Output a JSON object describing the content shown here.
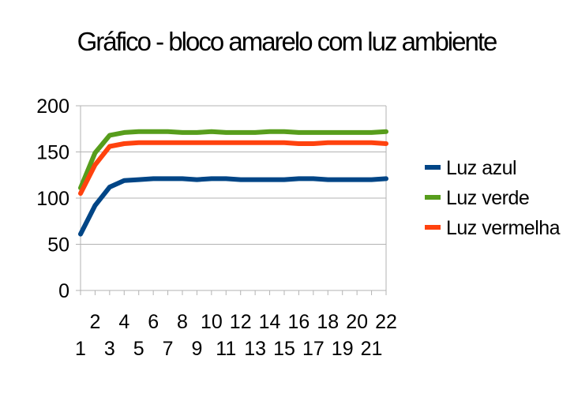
{
  "chart_data": {
    "type": "line",
    "title": "Gráfico - bloco amarelo com luz ambiente",
    "xlabel": "",
    "ylabel": "",
    "x": [
      1,
      2,
      3,
      4,
      5,
      6,
      7,
      8,
      9,
      10,
      11,
      12,
      13,
      14,
      15,
      16,
      17,
      18,
      19,
      20,
      21,
      22
    ],
    "x_tick_labels_row1": [
      "2",
      "4",
      "6",
      "8",
      "10",
      "12",
      "14",
      "16",
      "18",
      "20",
      "22"
    ],
    "x_tick_labels_row2": [
      "1",
      "3",
      "5",
      "7",
      "9",
      "11",
      "13",
      "15",
      "17",
      "19",
      "21"
    ],
    "y_tick_labels": [
      "0",
      "50",
      "100",
      "150",
      "200"
    ],
    "ylim": [
      0,
      200
    ],
    "grid": true,
    "legend_position": "right",
    "series": [
      {
        "name": "Luz azul",
        "color": "#004586",
        "values": [
          61,
          92,
          112,
          119,
          120,
          121,
          121,
          121,
          120,
          121,
          121,
          120,
          120,
          120,
          120,
          121,
          121,
          120,
          120,
          120,
          120,
          121
        ]
      },
      {
        "name": "Luz verde",
        "color": "#579d1c",
        "values": [
          111,
          149,
          168,
          171,
          172,
          172,
          172,
          171,
          171,
          172,
          171,
          171,
          171,
          172,
          172,
          171,
          171,
          171,
          171,
          171,
          171,
          172
        ]
      },
      {
        "name": "Luz vermelha",
        "color": "#ff420e",
        "values": [
          105,
          136,
          156,
          159,
          160,
          160,
          160,
          160,
          160,
          160,
          160,
          160,
          160,
          160,
          160,
          159,
          159,
          160,
          160,
          160,
          160,
          159
        ]
      }
    ]
  }
}
